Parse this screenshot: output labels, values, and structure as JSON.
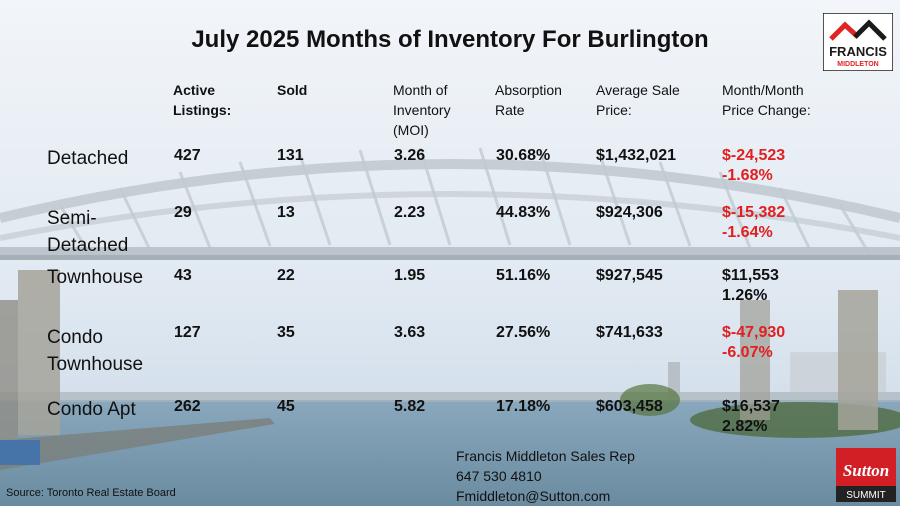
{
  "title": "July 2025 Months of Inventory For Burlington",
  "headers": {
    "active": [
      "Active",
      "Listings:"
    ],
    "sold": [
      "Sold"
    ],
    "moi": [
      "Month of",
      "Inventory",
      "(MOI)"
    ],
    "absorption": [
      "Absorption",
      "Rate"
    ],
    "avg_price": [
      "Average Sale",
      "Price:"
    ],
    "change": [
      "Month/Month",
      "Price Change:"
    ]
  },
  "rows": [
    {
      "label": [
        "Detached"
      ],
      "active": "427",
      "sold": "131",
      "moi": "3.26",
      "absorption": "30.68%",
      "avg_price": "$1,432,021",
      "change_amount": "$-24,523",
      "change_pct": "-1.68%",
      "negative": true
    },
    {
      "label": [
        "Semi-",
        "Detached"
      ],
      "active": "29",
      "sold": "13",
      "moi": "2.23",
      "absorption": "44.83%",
      "avg_price": "$924,306",
      "change_amount": "$-15,382",
      "change_pct": "-1.64%",
      "negative": true
    },
    {
      "label": [
        "Townhouse"
      ],
      "active": "43",
      "sold": "22",
      "moi": "1.95",
      "absorption": "51.16%",
      "avg_price": "$927,545",
      "change_amount": "$11,553",
      "change_pct": "1.26%",
      "negative": false
    },
    {
      "label": [
        "Condo",
        "Townhouse"
      ],
      "active": "127",
      "sold": "35",
      "moi": "3.63",
      "absorption": "27.56%",
      "avg_price": "$741,633",
      "change_amount": "$-47,930",
      "change_pct": "-6.07%",
      "negative": true
    },
    {
      "label": [
        "Condo Apt"
      ],
      "active": "262",
      "sold": "45",
      "moi": "5.82",
      "absorption": "17.18%",
      "avg_price": "$603,458",
      "change_amount": "$16,537",
      "change_pct": "2.82%",
      "negative": false
    }
  ],
  "contact": {
    "name": "Francis Middleton Sales Rep",
    "phone": "647 530 4810",
    "email": "Fmiddleton@Sutton.com"
  },
  "source": "Source: Toronto Real Estate Board",
  "logo": {
    "line1": "FRANCIS",
    "line2": "MIDDLETON",
    "colors": {
      "red": "#e02424",
      "dark": "#1a1a1a"
    }
  },
  "sutton": {
    "name": "Sutton",
    "sub": "SUMMIT",
    "color": "#d21f26"
  }
}
